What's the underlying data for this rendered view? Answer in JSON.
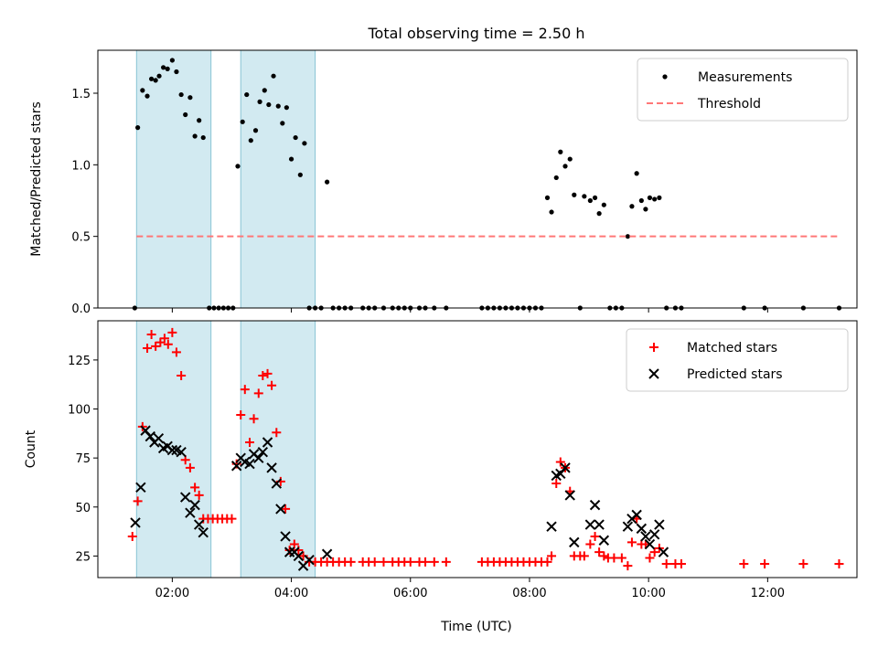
{
  "title": "Total observing time = 2.50 h",
  "xlabel": "Time (UTC)",
  "colors": {
    "measurements": "#000000",
    "threshold": "#ff7777",
    "matched": "#ff0000",
    "predicted": "#000000",
    "shade": "#add8e6"
  },
  "chart_data": [
    {
      "type": "scatter",
      "ylabel": "Matched/Predicted stars",
      "xlim": [
        0.75,
        13.5
      ],
      "ylim": [
        0.0,
        1.8
      ],
      "x_ticks": [
        "02:00",
        "04:00",
        "06:00",
        "08:00",
        "10:00",
        "12:00"
      ],
      "x_tick_values": [
        2,
        4,
        6,
        8,
        10,
        12
      ],
      "y_ticks": [
        "0.0",
        "0.5",
        "1.0",
        "1.5"
      ],
      "y_tick_values": [
        0.0,
        0.5,
        1.0,
        1.5
      ],
      "shaded_intervals": [
        [
          1.4,
          2.65
        ],
        [
          3.15,
          4.4
        ]
      ],
      "legend": {
        "placement": "top-right"
      },
      "series": [
        {
          "name": "Measurements",
          "marker": "dot",
          "points": [
            [
              1.37,
              0
            ],
            [
              1.42,
              1.26
            ],
            [
              1.5,
              1.52
            ],
            [
              1.58,
              1.48
            ],
            [
              1.65,
              1.6
            ],
            [
              1.72,
              1.59
            ],
            [
              1.78,
              1.62
            ],
            [
              1.85,
              1.68
            ],
            [
              1.92,
              1.67
            ],
            [
              2.0,
              1.73
            ],
            [
              2.07,
              1.65
            ],
            [
              2.15,
              1.49
            ],
            [
              2.22,
              1.35
            ],
            [
              2.3,
              1.47
            ],
            [
              2.38,
              1.2
            ],
            [
              2.45,
              1.31
            ],
            [
              2.52,
              1.19
            ],
            [
              2.62,
              0
            ],
            [
              2.7,
              0
            ],
            [
              2.78,
              0
            ],
            [
              2.86,
              0
            ],
            [
              2.94,
              0
            ],
            [
              3.02,
              0
            ],
            [
              3.1,
              0.99
            ],
            [
              3.18,
              1.3
            ],
            [
              3.25,
              1.49
            ],
            [
              3.32,
              1.17
            ],
            [
              3.4,
              1.24
            ],
            [
              3.47,
              1.44
            ],
            [
              3.55,
              1.52
            ],
            [
              3.62,
              1.42
            ],
            [
              3.7,
              1.62
            ],
            [
              3.78,
              1.41
            ],
            [
              3.85,
              1.29
            ],
            [
              3.92,
              1.4
            ],
            [
              4.0,
              1.04
            ],
            [
              4.07,
              1.19
            ],
            [
              4.15,
              0.93
            ],
            [
              4.22,
              1.15
            ],
            [
              4.3,
              0
            ],
            [
              4.4,
              0
            ],
            [
              4.5,
              0
            ],
            [
              4.6,
              0.88
            ],
            [
              4.7,
              0
            ],
            [
              4.8,
              0
            ],
            [
              4.9,
              0
            ],
            [
              5.0,
              0
            ],
            [
              5.2,
              0
            ],
            [
              5.3,
              0
            ],
            [
              5.4,
              0
            ],
            [
              5.55,
              0
            ],
            [
              5.7,
              0
            ],
            [
              5.8,
              0
            ],
            [
              5.9,
              0
            ],
            [
              6.0,
              0
            ],
            [
              6.15,
              0
            ],
            [
              6.25,
              0
            ],
            [
              6.4,
              0
            ],
            [
              6.6,
              0
            ],
            [
              7.2,
              0
            ],
            [
              7.3,
              0
            ],
            [
              7.4,
              0
            ],
            [
              7.5,
              0
            ],
            [
              7.6,
              0
            ],
            [
              7.7,
              0
            ],
            [
              7.8,
              0
            ],
            [
              7.9,
              0
            ],
            [
              8.0,
              0
            ],
            [
              8.1,
              0
            ],
            [
              8.2,
              0
            ],
            [
              8.3,
              0.77
            ],
            [
              8.37,
              0.67
            ],
            [
              8.45,
              0.91
            ],
            [
              8.52,
              1.09
            ],
            [
              8.6,
              0.99
            ],
            [
              8.68,
              1.04
            ],
            [
              8.75,
              0.79
            ],
            [
              8.85,
              0
            ],
            [
              8.92,
              0.78
            ],
            [
              9.02,
              0.75
            ],
            [
              9.1,
              0.77
            ],
            [
              9.17,
              0.66
            ],
            [
              9.25,
              0.72
            ],
            [
              9.35,
              0
            ],
            [
              9.45,
              0
            ],
            [
              9.55,
              0
            ],
            [
              9.65,
              0.5
            ],
            [
              9.72,
              0.71
            ],
            [
              9.8,
              0.94
            ],
            [
              9.88,
              0.75
            ],
            [
              9.95,
              0.69
            ],
            [
              10.02,
              0.77
            ],
            [
              10.1,
              0.76
            ],
            [
              10.18,
              0.77
            ],
            [
              10.3,
              0
            ],
            [
              10.45,
              0
            ],
            [
              10.55,
              0
            ],
            [
              11.6,
              0
            ],
            [
              11.95,
              0
            ],
            [
              12.6,
              0
            ],
            [
              13.2,
              0
            ]
          ]
        },
        {
          "name": "Threshold",
          "marker": "dashed-line",
          "points": [
            [
              1.4,
              0.5
            ],
            [
              13.2,
              0.5
            ]
          ]
        }
      ]
    },
    {
      "type": "scatter",
      "ylabel": "Count",
      "xlim": [
        0.75,
        13.5
      ],
      "ylim": [
        14,
        145
      ],
      "x_ticks": [
        "02:00",
        "04:00",
        "06:00",
        "08:00",
        "10:00",
        "12:00"
      ],
      "x_tick_values": [
        2,
        4,
        6,
        8,
        10,
        12
      ],
      "y_ticks": [
        "25",
        "50",
        "75",
        "100",
        "125"
      ],
      "y_tick_values": [
        25,
        50,
        75,
        100,
        125
      ],
      "shaded_intervals": [
        [
          1.4,
          2.65
        ],
        [
          3.15,
          4.4
        ]
      ],
      "legend": {
        "placement": "top-right"
      },
      "series": [
        {
          "name": "Matched stars",
          "marker": "plus",
          "points": [
            [
              1.33,
              35
            ],
            [
              1.42,
              53
            ],
            [
              1.5,
              91
            ],
            [
              1.58,
              131
            ],
            [
              1.65,
              138
            ],
            [
              1.72,
              132
            ],
            [
              1.8,
              134
            ],
            [
              1.87,
              136
            ],
            [
              1.93,
              133
            ],
            [
              2.0,
              139
            ],
            [
              2.07,
              129
            ],
            [
              2.15,
              117
            ],
            [
              2.22,
              74
            ],
            [
              2.3,
              70
            ],
            [
              2.38,
              60
            ],
            [
              2.45,
              56
            ],
            [
              2.52,
              44
            ],
            [
              2.6,
              44
            ],
            [
              2.68,
              44
            ],
            [
              2.76,
              44
            ],
            [
              2.84,
              44
            ],
            [
              2.92,
              44
            ],
            [
              3.0,
              44
            ],
            [
              3.08,
              72
            ],
            [
              3.15,
              97
            ],
            [
              3.22,
              110
            ],
            [
              3.3,
              83
            ],
            [
              3.37,
              95
            ],
            [
              3.45,
              108
            ],
            [
              3.52,
              117
            ],
            [
              3.6,
              118
            ],
            [
              3.67,
              112
            ],
            [
              3.75,
              88
            ],
            [
              3.82,
              63
            ],
            [
              3.9,
              49
            ],
            [
              3.97,
              28
            ],
            [
              4.05,
              31
            ],
            [
              4.12,
              28
            ],
            [
              4.2,
              25
            ],
            [
              4.3,
              22
            ],
            [
              4.4,
              22
            ],
            [
              4.5,
              22
            ],
            [
              4.6,
              22
            ],
            [
              4.7,
              22
            ],
            [
              4.8,
              22
            ],
            [
              4.9,
              22
            ],
            [
              5.0,
              22
            ],
            [
              5.2,
              22
            ],
            [
              5.3,
              22
            ],
            [
              5.4,
              22
            ],
            [
              5.55,
              22
            ],
            [
              5.7,
              22
            ],
            [
              5.8,
              22
            ],
            [
              5.9,
              22
            ],
            [
              6.0,
              22
            ],
            [
              6.15,
              22
            ],
            [
              6.25,
              22
            ],
            [
              6.4,
              22
            ],
            [
              6.6,
              22
            ],
            [
              7.2,
              22
            ],
            [
              7.3,
              22
            ],
            [
              7.4,
              22
            ],
            [
              7.5,
              22
            ],
            [
              7.6,
              22
            ],
            [
              7.7,
              22
            ],
            [
              7.8,
              22
            ],
            [
              7.9,
              22
            ],
            [
              8.0,
              22
            ],
            [
              8.1,
              22
            ],
            [
              8.2,
              22
            ],
            [
              8.3,
              22
            ],
            [
              8.37,
              25
            ],
            [
              8.45,
              62
            ],
            [
              8.52,
              73
            ],
            [
              8.6,
              70
            ],
            [
              8.68,
              58
            ],
            [
              8.75,
              25
            ],
            [
              8.85,
              25
            ],
            [
              8.92,
              25
            ],
            [
              9.02,
              31
            ],
            [
              9.1,
              35
            ],
            [
              9.17,
              27
            ],
            [
              9.25,
              25
            ],
            [
              9.32,
              24
            ],
            [
              9.42,
              24
            ],
            [
              9.55,
              24
            ],
            [
              9.65,
              20
            ],
            [
              9.72,
              32
            ],
            [
              9.8,
              44
            ],
            [
              9.88,
              31
            ],
            [
              9.95,
              31
            ],
            [
              10.02,
              24
            ],
            [
              10.1,
              27
            ],
            [
              10.18,
              29
            ],
            [
              10.3,
              21
            ],
            [
              10.45,
              21
            ],
            [
              10.55,
              21
            ],
            [
              11.6,
              21
            ],
            [
              11.95,
              21
            ],
            [
              12.6,
              21
            ],
            [
              13.2,
              21
            ]
          ]
        },
        {
          "name": "Predicted stars",
          "marker": "x",
          "points": [
            [
              1.38,
              42
            ],
            [
              1.47,
              60
            ],
            [
              1.55,
              89
            ],
            [
              1.63,
              86
            ],
            [
              1.7,
              83
            ],
            [
              1.77,
              85
            ],
            [
              1.85,
              80
            ],
            [
              1.92,
              81
            ],
            [
              2.0,
              79
            ],
            [
              2.07,
              79
            ],
            [
              2.15,
              78
            ],
            [
              2.22,
              55
            ],
            [
              2.3,
              47
            ],
            [
              2.38,
              51
            ],
            [
              2.45,
              41
            ],
            [
              2.52,
              37
            ],
            [
              3.08,
              71
            ],
            [
              3.15,
              75
            ],
            [
              3.22,
              73
            ],
            [
              3.3,
              72
            ],
            [
              3.37,
              77
            ],
            [
              3.45,
              75
            ],
            [
              3.52,
              78
            ],
            [
              3.6,
              83
            ],
            [
              3.67,
              70
            ],
            [
              3.75,
              62
            ],
            [
              3.82,
              49
            ],
            [
              3.9,
              35
            ],
            [
              3.97,
              27
            ],
            [
              4.05,
              27
            ],
            [
              4.12,
              25
            ],
            [
              4.2,
              20
            ],
            [
              4.3,
              23
            ],
            [
              4.6,
              26
            ],
            [
              8.37,
              40
            ],
            [
              8.45,
              66
            ],
            [
              8.52,
              67
            ],
            [
              8.6,
              70
            ],
            [
              8.68,
              56
            ],
            [
              8.75,
              32
            ],
            [
              9.02,
              41
            ],
            [
              9.1,
              51
            ],
            [
              9.17,
              41
            ],
            [
              9.25,
              33
            ],
            [
              9.65,
              40
            ],
            [
              9.72,
              44
            ],
            [
              9.8,
              46
            ],
            [
              9.88,
              39
            ],
            [
              9.95,
              35
            ],
            [
              10.02,
              31
            ],
            [
              10.1,
              36
            ],
            [
              10.18,
              41
            ],
            [
              10.25,
              27
            ]
          ]
        }
      ]
    }
  ]
}
